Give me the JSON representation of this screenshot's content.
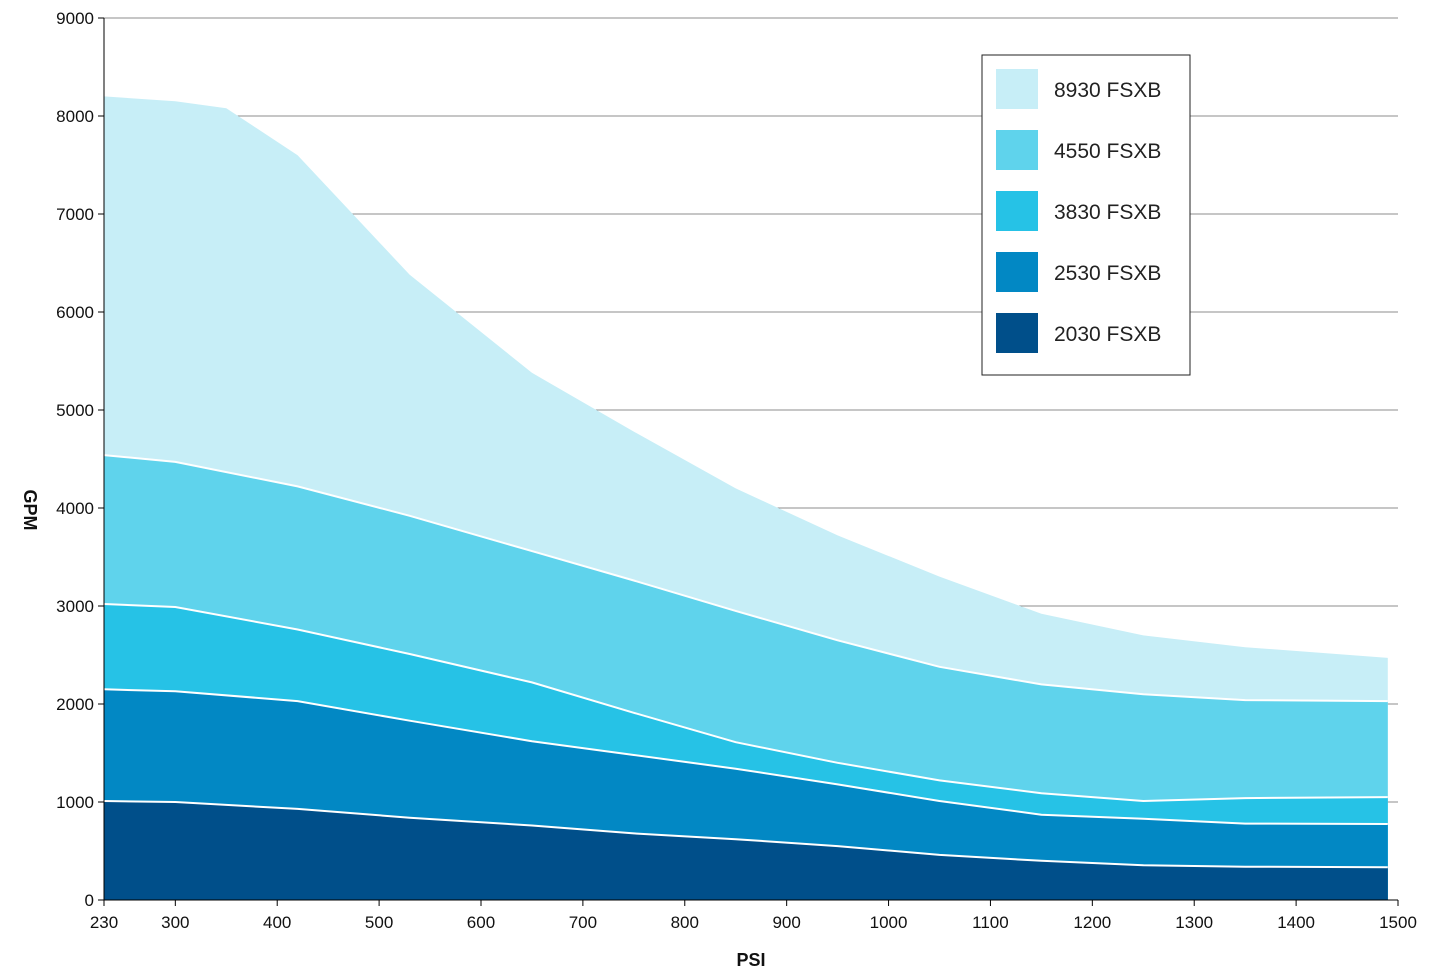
{
  "chart_data": {
    "type": "area",
    "stacked": false,
    "title": "",
    "xlabel": "PSI",
    "ylabel": "GPM",
    "xlim": [
      230,
      1500
    ],
    "ylim": [
      0,
      9000
    ],
    "xticks": [
      230,
      300,
      400,
      500,
      600,
      700,
      800,
      900,
      1000,
      1100,
      1200,
      1300,
      1400,
      1500
    ],
    "yticks": [
      0,
      1000,
      2000,
      3000,
      4000,
      5000,
      6000,
      7000,
      8000,
      9000
    ],
    "grid": "horizontal",
    "legend": "top-right",
    "series": [
      {
        "name": "8930 FSXB",
        "color": "#c7eef7",
        "points": [
          [
            230,
            8200
          ],
          [
            300,
            8150
          ],
          [
            350,
            8080
          ],
          [
            420,
            7600
          ],
          [
            530,
            6380
          ],
          [
            650,
            5380
          ],
          [
            750,
            4780
          ],
          [
            850,
            4200
          ],
          [
            950,
            3720
          ],
          [
            1050,
            3300
          ],
          [
            1150,
            2920
          ],
          [
            1250,
            2700
          ],
          [
            1350,
            2580
          ],
          [
            1490,
            2470
          ]
        ]
      },
      {
        "name": "4550 FSXB",
        "color": "#5fd3ec",
        "points": [
          [
            230,
            4540
          ],
          [
            300,
            4470
          ],
          [
            420,
            4220
          ],
          [
            530,
            3920
          ],
          [
            650,
            3560
          ],
          [
            750,
            3260
          ],
          [
            850,
            2950
          ],
          [
            950,
            2650
          ],
          [
            1050,
            2380
          ],
          [
            1150,
            2200
          ],
          [
            1250,
            2100
          ],
          [
            1350,
            2040
          ],
          [
            1490,
            2030
          ]
        ]
      },
      {
        "name": "3830 FSXB",
        "color": "#26c2e6",
        "points": [
          [
            230,
            3020
          ],
          [
            300,
            2990
          ],
          [
            420,
            2760
          ],
          [
            530,
            2510
          ],
          [
            650,
            2220
          ],
          [
            750,
            1910
          ],
          [
            850,
            1610
          ],
          [
            950,
            1400
          ],
          [
            1050,
            1220
          ],
          [
            1150,
            1090
          ],
          [
            1250,
            1010
          ],
          [
            1350,
            1040
          ],
          [
            1490,
            1050
          ]
        ]
      },
      {
        "name": "2530 FSXB",
        "color": "#0288c4",
        "points": [
          [
            230,
            2150
          ],
          [
            300,
            2130
          ],
          [
            420,
            2030
          ],
          [
            530,
            1830
          ],
          [
            650,
            1620
          ],
          [
            750,
            1480
          ],
          [
            850,
            1340
          ],
          [
            950,
            1180
          ],
          [
            1050,
            1010
          ],
          [
            1150,
            870
          ],
          [
            1250,
            830
          ],
          [
            1350,
            780
          ],
          [
            1490,
            775
          ]
        ]
      },
      {
        "name": "2030 FSXB",
        "color": "#004f8a",
        "points": [
          [
            230,
            1010
          ],
          [
            300,
            1000
          ],
          [
            420,
            930
          ],
          [
            530,
            840
          ],
          [
            650,
            760
          ],
          [
            750,
            680
          ],
          [
            850,
            620
          ],
          [
            950,
            550
          ],
          [
            1050,
            460
          ],
          [
            1150,
            400
          ],
          [
            1250,
            355
          ],
          [
            1350,
            340
          ],
          [
            1490,
            335
          ]
        ]
      }
    ]
  }
}
